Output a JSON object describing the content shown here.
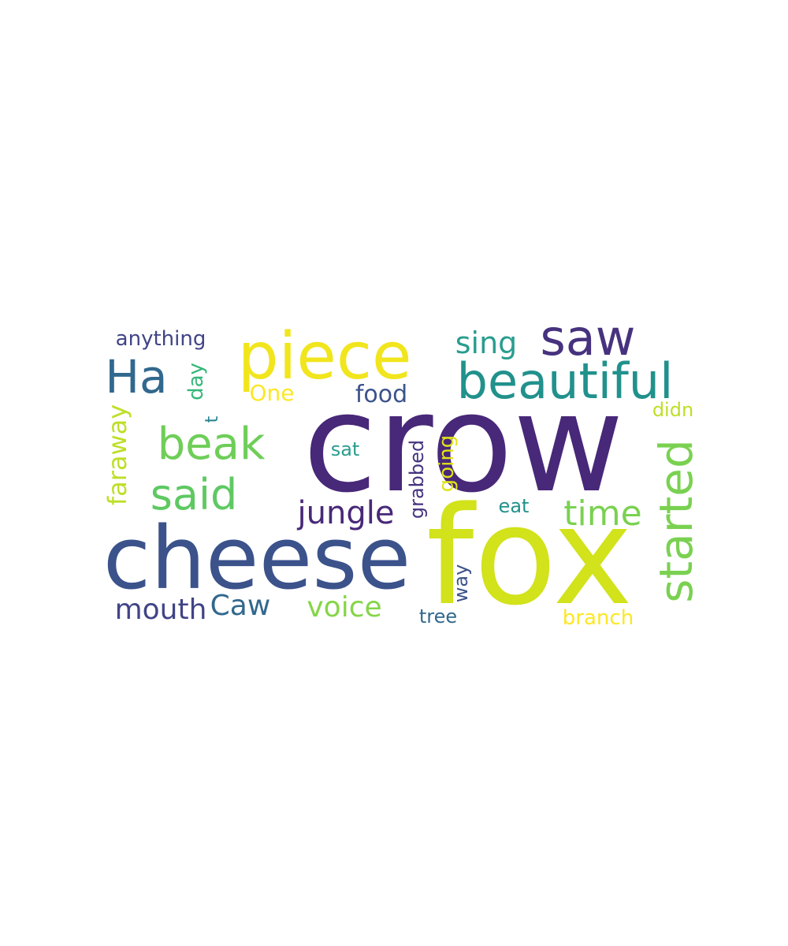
{
  "word_cloud": {
    "words": [
      {
        "text": "crow",
        "color": "#482878"
      },
      {
        "text": "fox",
        "color": "#d2e21b"
      },
      {
        "text": "cheese",
        "color": "#3b528b"
      },
      {
        "text": "piece",
        "color": "#f1e51d"
      },
      {
        "text": "saw",
        "color": "#46327e"
      },
      {
        "text": "beautiful",
        "color": "#21918c"
      },
      {
        "text": "Ha",
        "color": "#31688e"
      },
      {
        "text": "beak",
        "color": "#6ece58"
      },
      {
        "text": "said",
        "color": "#5ec962"
      },
      {
        "text": "started",
        "color": "#7ad151"
      },
      {
        "text": "time",
        "color": "#7ad151"
      },
      {
        "text": "jungle",
        "color": "#482878"
      },
      {
        "text": "sing",
        "color": "#2a9d8f"
      },
      {
        "text": "voice",
        "color": "#86d549"
      },
      {
        "text": "mouth",
        "color": "#414487"
      },
      {
        "text": "Caw",
        "color": "#31688e"
      },
      {
        "text": "anything",
        "color": "#414487"
      },
      {
        "text": "food",
        "color": "#3b528b"
      },
      {
        "text": "One",
        "color": "#fde725"
      },
      {
        "text": "faraway",
        "color": "#bddf26"
      },
      {
        "text": "day",
        "color": "#35b779"
      },
      {
        "text": "t",
        "color": "#26828e"
      },
      {
        "text": "sat",
        "color": "#2a9d8f"
      },
      {
        "text": "grabbed",
        "color": "#46327e"
      },
      {
        "text": "going",
        "color": "#e0e319"
      },
      {
        "text": "didn",
        "color": "#bddf26"
      },
      {
        "text": "eat",
        "color": "#21918c"
      },
      {
        "text": "way",
        "color": "#3b528b"
      },
      {
        "text": "tree",
        "color": "#31688e"
      },
      {
        "text": "branch",
        "color": "#fde725"
      }
    ]
  }
}
